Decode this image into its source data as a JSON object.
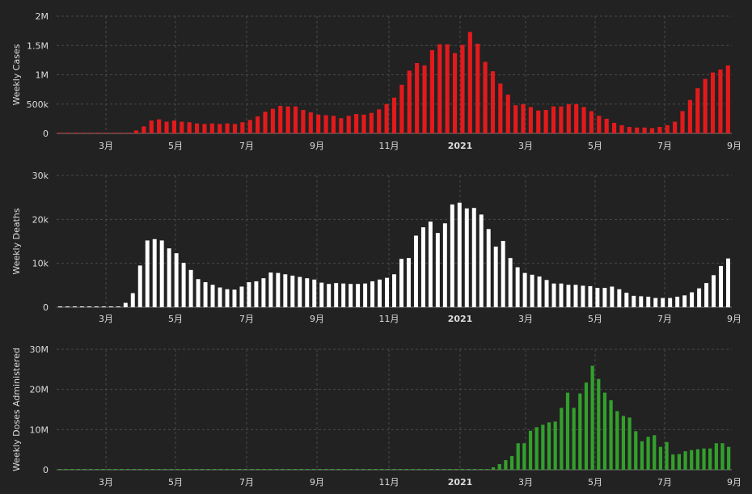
{
  "chart_data": [
    {
      "type": "bar",
      "ylabel": "Weekly Cases",
      "color": "#e31a1c",
      "ylim": [
        0,
        2000000
      ],
      "yticks": [
        {
          "value": 0,
          "label": "0"
        },
        {
          "value": 500000,
          "label": "500k"
        },
        {
          "value": 1000000,
          "label": "1M"
        },
        {
          "value": 1500000,
          "label": "1.5M"
        },
        {
          "value": 2000000,
          "label": "2M"
        }
      ],
      "values": [
        0,
        0,
        0,
        0,
        0,
        0,
        0,
        0,
        0,
        0,
        50000,
        120000,
        220000,
        240000,
        200000,
        220000,
        200000,
        190000,
        170000,
        160000,
        170000,
        160000,
        170000,
        160000,
        190000,
        230000,
        290000,
        370000,
        420000,
        470000,
        460000,
        460000,
        400000,
        360000,
        320000,
        310000,
        300000,
        260000,
        300000,
        330000,
        320000,
        350000,
        410000,
        500000,
        610000,
        830000,
        1070000,
        1200000,
        1160000,
        1420000,
        1520000,
        1520000,
        1370000,
        1510000,
        1730000,
        1530000,
        1220000,
        1060000,
        850000,
        660000,
        480000,
        500000,
        450000,
        390000,
        400000,
        460000,
        460000,
        500000,
        500000,
        450000,
        380000,
        300000,
        250000,
        180000,
        140000,
        110000,
        100000,
        100000,
        90000,
        110000,
        140000,
        200000,
        380000,
        570000,
        770000,
        930000,
        1040000,
        1090000,
        1160000
      ]
    },
    {
      "type": "bar",
      "ylabel": "Weekly Deaths",
      "color": "#ffffff",
      "ylim": [
        0,
        30000
      ],
      "yticks": [
        {
          "value": 0,
          "label": "0"
        },
        {
          "value": 10000,
          "label": "10k"
        },
        {
          "value": 20000,
          "label": "20k"
        },
        {
          "value": 30000,
          "label": "30k"
        }
      ],
      "values": [
        0,
        0,
        0,
        0,
        0,
        0,
        0,
        0,
        0,
        1000,
        3200,
        9500,
        15200,
        15500,
        15200,
        13400,
        12300,
        10100,
        8500,
        6400,
        5700,
        5100,
        4500,
        4100,
        4000,
        4700,
        5700,
        5900,
        6600,
        7900,
        7800,
        7500,
        7200,
        6900,
        6600,
        6300,
        5600,
        5300,
        5500,
        5400,
        5300,
        5300,
        5400,
        5900,
        6300,
        6700,
        7500,
        11000,
        11200,
        16300,
        18200,
        19500,
        16900,
        19100,
        23400,
        23800,
        22500,
        22600,
        21100,
        17800,
        13800,
        15100,
        11200,
        9100,
        7800,
        7400,
        7000,
        6200,
        5400,
        5400,
        5100,
        5100,
        4900,
        4800,
        4400,
        4400,
        4700,
        4100,
        3300,
        2600,
        2500,
        2400,
        2100,
        2100,
        2100,
        2400,
        2700,
        3400,
        4300,
        5500,
        7300,
        9400,
        11100
      ]
    },
    {
      "type": "bar",
      "ylabel": "Weekly Doses Administered",
      "color": "#33a02c",
      "ylim": [
        0,
        30000000
      ],
      "yticks": [
        {
          "value": 0,
          "label": "0"
        },
        {
          "value": 10000000,
          "label": "10M"
        },
        {
          "value": 20000000,
          "label": "20M"
        },
        {
          "value": 30000000,
          "label": "30M"
        }
      ],
      "values": [
        0,
        0,
        0,
        0,
        0,
        0,
        0,
        0,
        0,
        0,
        0,
        0,
        0,
        0,
        0,
        0,
        0,
        0,
        0,
        0,
        0,
        0,
        0,
        0,
        0,
        0,
        0,
        0,
        0,
        0,
        0,
        0,
        0,
        0,
        0,
        0,
        0,
        0,
        0,
        0,
        0,
        0,
        0,
        0,
        0,
        0,
        0,
        0,
        0,
        0,
        0,
        0,
        0,
        0,
        0,
        0,
        0,
        0,
        0,
        0,
        0,
        0,
        0,
        0,
        0,
        0,
        0,
        0,
        0,
        0,
        600000,
        1400000,
        2400000,
        3400000,
        6600000,
        6600000,
        9700000,
        10600000,
        11200000,
        11800000,
        12000000,
        15400000,
        19200000,
        15400000,
        19000000,
        21700000,
        25900000,
        22600000,
        19200000,
        17300000,
        14600000,
        13400000,
        13000000,
        9600000,
        7100000,
        8200000,
        8600000,
        5700000,
        6900000,
        3800000,
        3900000,
        4600000,
        4900000,
        5100000,
        5300000,
        5300000,
        6600000,
        6600000,
        5700000
      ]
    }
  ],
  "x_ticks": [
    {
      "label": "3月",
      "bold": false
    },
    {
      "label": "5月",
      "bold": false
    },
    {
      "label": "7月",
      "bold": false
    },
    {
      "label": "9月",
      "bold": false
    },
    {
      "label": "11月",
      "bold": false
    },
    {
      "label": "2021",
      "bold": true
    },
    {
      "label": "3月",
      "bold": false
    },
    {
      "label": "5月",
      "bold": false
    },
    {
      "label": "7月",
      "bold": false
    },
    {
      "label": "9月",
      "bold": false
    }
  ]
}
